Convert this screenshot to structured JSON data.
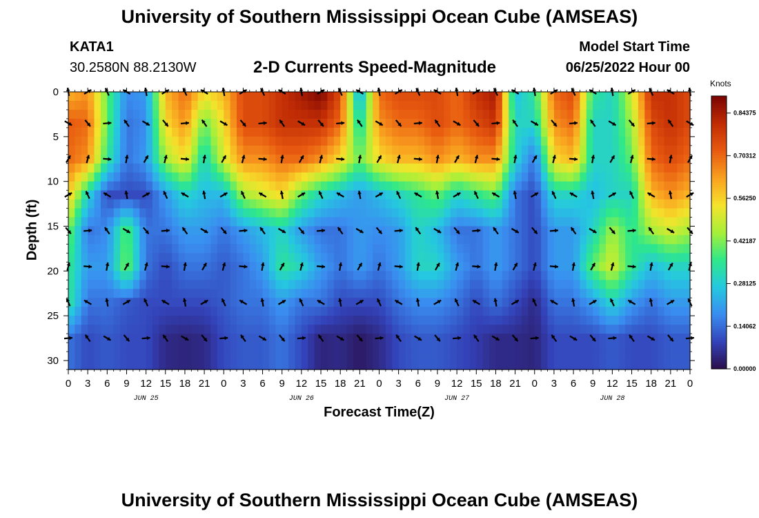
{
  "header": {
    "title": "University of Southern Mississippi Ocean Cube (AMSEAS)",
    "station_id": "KATA1",
    "station_coords": "30.2580N  88.2130W",
    "plot_title": "2-D Currents Speed-Magnitude",
    "model_start_label": "Model Start Time",
    "model_start_value": "06/25/2022 Hour 00"
  },
  "footer": {
    "title": "University of Southern Mississippi Ocean Cube (AMSEAS)"
  },
  "chart_data": {
    "type": "heatmap",
    "title": "2-D Currents Speed-Magnitude",
    "xlabel": "Forecast Time(Z)",
    "ylabel": "Depth (ft)",
    "xlim": [
      0,
      96
    ],
    "ylim": [
      31,
      0
    ],
    "x_tick_labels": [
      "0",
      "3",
      "6",
      "9",
      "12",
      "15",
      "18",
      "21",
      "0",
      "3",
      "6",
      "9",
      "12",
      "15",
      "18",
      "21",
      "0",
      "3",
      "6",
      "9",
      "12",
      "15",
      "18",
      "21",
      "0",
      "3",
      "6",
      "9",
      "12",
      "15",
      "18",
      "21",
      "0"
    ],
    "day_labels": [
      {
        "label": "JUN 25",
        "hour": 12
      },
      {
        "label": "JUN 26",
        "hour": 36
      },
      {
        "label": "JUN 27",
        "hour": 60
      },
      {
        "label": "JUN 28",
        "hour": 84
      }
    ],
    "y_ticks": [
      0,
      5,
      10,
      15,
      20,
      25,
      30
    ],
    "colorbar": {
      "unit": "Knots",
      "vmin": 0,
      "vmax": 0.9,
      "tick_labels": [
        "0.00000",
        "0.14062",
        "0.28125",
        "0.42187",
        "0.56250",
        "0.70312",
        "0.84375"
      ],
      "colors": [
        "#2a0d4a",
        "#3342b8",
        "#3a8df0",
        "#25c8e0",
        "#2ee88a",
        "#a6f03a",
        "#f5e32b",
        "#f9a11f",
        "#e85a10",
        "#c12c05",
        "#7a0403"
      ]
    },
    "vector_hours": [
      0,
      3,
      6,
      9,
      12,
      15,
      18,
      21,
      24,
      27,
      30,
      33,
      36,
      39,
      42,
      45,
      48,
      51,
      54,
      57,
      60,
      63,
      66,
      69,
      72,
      75,
      78,
      81,
      84,
      87,
      90,
      93,
      96
    ],
    "vector_depths": [
      0,
      3.5,
      7.5,
      11.5,
      15.5,
      19.5,
      23.5,
      27.5
    ],
    "speed_profiles": [
      [
        0.6,
        0.72,
        0.7,
        0.58,
        0.42,
        0.36,
        0.35,
        0.15
      ],
      [
        0.65,
        0.7,
        0.65,
        0.3,
        0.15,
        0.2,
        0.15,
        0.1
      ],
      [
        0.4,
        0.4,
        0.35,
        0.1,
        0.18,
        0.2,
        0.15,
        0.12
      ],
      [
        0.18,
        0.15,
        0.15,
        0.1,
        0.4,
        0.42,
        0.12,
        0.1
      ],
      [
        0.2,
        0.18,
        0.2,
        0.1,
        0.15,
        0.15,
        0.1,
        0.1
      ],
      [
        0.6,
        0.55,
        0.45,
        0.2,
        0.15,
        0.1,
        0.1,
        0.05
      ],
      [
        0.7,
        0.65,
        0.55,
        0.3,
        0.2,
        0.15,
        0.1,
        0.04
      ],
      [
        0.55,
        0.4,
        0.3,
        0.25,
        0.2,
        0.15,
        0.1,
        0.05
      ],
      [
        0.6,
        0.55,
        0.5,
        0.25,
        0.15,
        0.12,
        0.12,
        0.1
      ],
      [
        0.75,
        0.75,
        0.65,
        0.45,
        0.2,
        0.15,
        0.15,
        0.12
      ],
      [
        0.75,
        0.75,
        0.65,
        0.5,
        0.25,
        0.2,
        0.15,
        0.12
      ],
      [
        0.8,
        0.8,
        0.7,
        0.55,
        0.3,
        0.35,
        0.2,
        0.15
      ],
      [
        0.85,
        0.8,
        0.7,
        0.4,
        0.2,
        0.3,
        0.15,
        0.1
      ],
      [
        0.9,
        0.8,
        0.65,
        0.3,
        0.15,
        0.2,
        0.15,
        0.04
      ],
      [
        0.75,
        0.7,
        0.55,
        0.25,
        0.15,
        0.15,
        0.1,
        0.05
      ],
      [
        0.2,
        0.3,
        0.4,
        0.2,
        0.2,
        0.2,
        0.1,
        0.02
      ],
      [
        0.7,
        0.65,
        0.55,
        0.25,
        0.18,
        0.15,
        0.1,
        0.05
      ],
      [
        0.75,
        0.7,
        0.6,
        0.3,
        0.2,
        0.2,
        0.15,
        0.1
      ],
      [
        0.75,
        0.7,
        0.6,
        0.35,
        0.3,
        0.3,
        0.18,
        0.12
      ],
      [
        0.75,
        0.75,
        0.65,
        0.4,
        0.25,
        0.3,
        0.18,
        0.12
      ],
      [
        0.7,
        0.7,
        0.6,
        0.3,
        0.15,
        0.2,
        0.15,
        0.1
      ],
      [
        0.8,
        0.75,
        0.65,
        0.35,
        0.15,
        0.15,
        0.1,
        0.08
      ],
      [
        0.85,
        0.8,
        0.65,
        0.4,
        0.2,
        0.2,
        0.15,
        0.05
      ],
      [
        0.25,
        0.3,
        0.3,
        0.15,
        0.15,
        0.15,
        0.1,
        0.05
      ],
      [
        0.35,
        0.3,
        0.15,
        0.1,
        0.1,
        0.1,
        0.05,
        0.04
      ],
      [
        0.7,
        0.65,
        0.55,
        0.3,
        0.2,
        0.2,
        0.15,
        0.1
      ],
      [
        0.75,
        0.7,
        0.6,
        0.3,
        0.2,
        0.2,
        0.15,
        0.1
      ],
      [
        0.35,
        0.3,
        0.3,
        0.25,
        0.3,
        0.4,
        0.2,
        0.1
      ],
      [
        0.3,
        0.3,
        0.3,
        0.3,
        0.45,
        0.5,
        0.3,
        0.12
      ],
      [
        0.5,
        0.45,
        0.4,
        0.3,
        0.35,
        0.35,
        0.2,
        0.1
      ],
      [
        0.8,
        0.75,
        0.7,
        0.6,
        0.45,
        0.25,
        0.15,
        0.1
      ],
      [
        0.8,
        0.8,
        0.75,
        0.65,
        0.5,
        0.3,
        0.2,
        0.12
      ],
      [
        0.75,
        0.75,
        0.7,
        0.6,
        0.45,
        0.3,
        0.2,
        0.12
      ]
    ]
  }
}
